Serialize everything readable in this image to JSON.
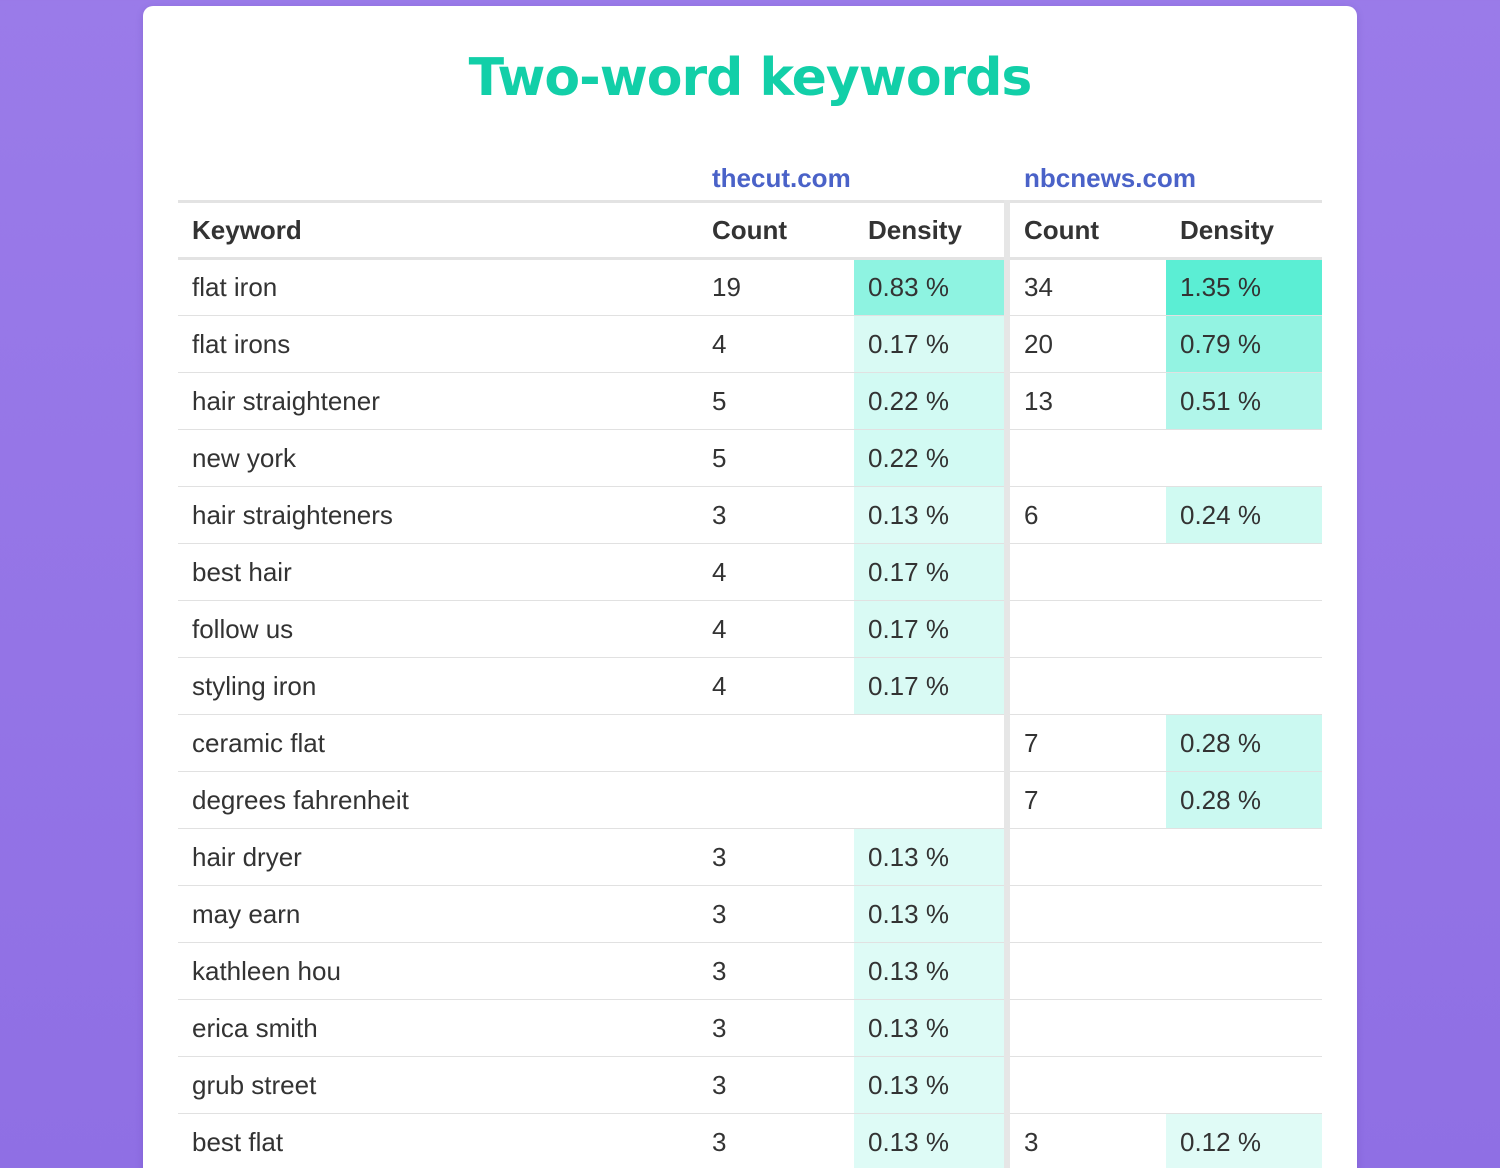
{
  "title": "Two-word keywords",
  "sites": [
    "thecut.com",
    "nbcnews.com"
  ],
  "headers": {
    "keyword": "Keyword",
    "count1": "Count",
    "density1": "Density",
    "count2": "Count",
    "density2": "Density"
  },
  "colors": {
    "title": "#12cfa8",
    "site_link": "#4a62c8",
    "density_heat_max": "#5beed4",
    "density_heat_min": "#f3fdfb"
  },
  "rows": [
    {
      "keyword": "flat iron",
      "count1": "19",
      "density1": "0.83 %",
      "count2": "34",
      "density2": "1.35 %"
    },
    {
      "keyword": "flat irons",
      "count1": "4",
      "density1": "0.17 %",
      "count2": "20",
      "density2": "0.79 %"
    },
    {
      "keyword": "hair straightener",
      "count1": "5",
      "density1": "0.22 %",
      "count2": "13",
      "density2": "0.51 %"
    },
    {
      "keyword": "new york",
      "count1": "5",
      "density1": "0.22 %",
      "count2": "",
      "density2": ""
    },
    {
      "keyword": "hair straighteners",
      "count1": "3",
      "density1": "0.13 %",
      "count2": "6",
      "density2": "0.24 %"
    },
    {
      "keyword": "best hair",
      "count1": "4",
      "density1": "0.17 %",
      "count2": "",
      "density2": ""
    },
    {
      "keyword": "follow us",
      "count1": "4",
      "density1": "0.17 %",
      "count2": "",
      "density2": ""
    },
    {
      "keyword": "styling iron",
      "count1": "4",
      "density1": "0.17 %",
      "count2": "",
      "density2": ""
    },
    {
      "keyword": "ceramic flat",
      "count1": "",
      "density1": "",
      "count2": "7",
      "density2": "0.28 %"
    },
    {
      "keyword": "degrees fahrenheit",
      "count1": "",
      "density1": "",
      "count2": "7",
      "density2": "0.28 %"
    },
    {
      "keyword": "hair dryer",
      "count1": "3",
      "density1": "0.13 %",
      "count2": "",
      "density2": ""
    },
    {
      "keyword": "may earn",
      "count1": "3",
      "density1": "0.13 %",
      "count2": "",
      "density2": ""
    },
    {
      "keyword": "kathleen hou",
      "count1": "3",
      "density1": "0.13 %",
      "count2": "",
      "density2": ""
    },
    {
      "keyword": "erica smith",
      "count1": "3",
      "density1": "0.13 %",
      "count2": "",
      "density2": ""
    },
    {
      "keyword": "grub street",
      "count1": "3",
      "density1": "0.13 %",
      "count2": "",
      "density2": ""
    },
    {
      "keyword": "best flat",
      "count1": "3",
      "density1": "0.13 %",
      "count2": "3",
      "density2": "0.12 %"
    }
  ]
}
